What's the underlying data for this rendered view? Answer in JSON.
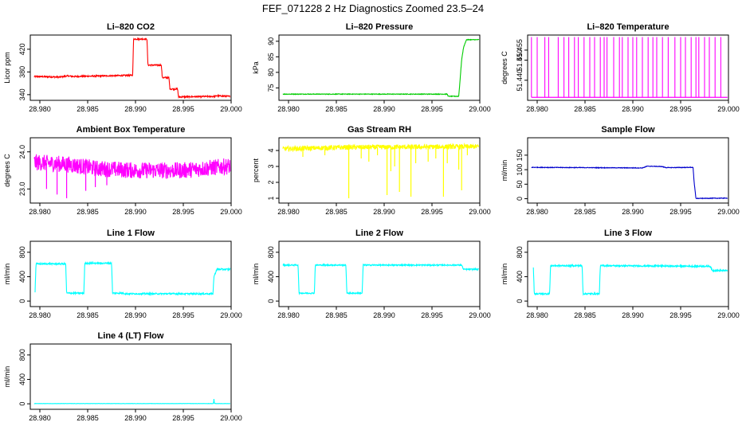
{
  "figure": {
    "title": "FEF_071228  2 Hz Diagnostics Zoomed 23.5–24"
  },
  "chart_data": [
    {
      "type": "line",
      "title": "Li–820 CO2",
      "ylabel": "Licor ppm",
      "color": "#ff0000",
      "xlim": [
        28.979,
        29.0
      ],
      "ylim": [
        330,
        445
      ],
      "x_ticks": [
        "28.980",
        "28.985",
        "28.990",
        "28.995",
        "29.000"
      ],
      "x_tick_values": [
        28.98,
        28.985,
        28.99,
        28.995,
        29.0
      ],
      "y_ticks": [
        "340",
        "380",
        "420"
      ],
      "y_tick_values": [
        340,
        380,
        420
      ],
      "noise": 1.2,
      "series": [
        {
          "x": [
            28.9794,
            28.982,
            28.9829,
            28.9835,
            28.9897,
            28.9898,
            28.9912,
            28.9913,
            28.9927,
            28.9928,
            28.9935,
            28.9936,
            28.9944,
            28.9945,
            28.9983,
            28.9985,
            28.9999
          ],
          "values": [
            372,
            371,
            373,
            372,
            374,
            438,
            438,
            392,
            392,
            370,
            370,
            350,
            350,
            336,
            337,
            338,
            337
          ]
        }
      ]
    },
    {
      "type": "line",
      "title": "Li–820 Pressure",
      "ylabel": "kPa",
      "color": "#00cc00",
      "xlim": [
        28.979,
        29.0
      ],
      "ylim": [
        71,
        92
      ],
      "x_ticks": [
        "28.980",
        "28.985",
        "28.990",
        "28.995",
        "29.000"
      ],
      "x_tick_values": [
        28.98,
        28.985,
        28.99,
        28.995,
        29.0
      ],
      "y_ticks": [
        "75",
        "80",
        "85",
        "90"
      ],
      "y_tick_values": [
        75,
        80,
        85,
        90
      ],
      "noise": 0.1,
      "series": [
        {
          "x": [
            28.9794,
            28.9966,
            28.9967,
            28.9978,
            28.9981,
            28.9983,
            28.9986,
            28.9999
          ],
          "values": [
            73.0,
            73.0,
            72.3,
            72.3,
            84,
            88,
            90.5,
            90.5
          ]
        }
      ]
    },
    {
      "type": "line",
      "title": "Li–820 Temperature",
      "ylabel": "degrees C",
      "color": "#ff00ff",
      "xlim": [
        28.979,
        29.0
      ],
      "ylim": [
        51.43,
        51.4625
      ],
      "x_ticks": [
        "28.980",
        "28.985",
        "28.990",
        "28.995",
        "29.000"
      ],
      "x_tick_values": [
        28.98,
        28.985,
        28.99,
        28.995,
        29.0
      ],
      "y_ticks": [
        "51.440",
        "51.450",
        "51.455"
      ],
      "y_tick_values": [
        51.44,
        51.45,
        51.455
      ],
      "low": 51.4315,
      "high": 51.4615,
      "spike_x": [
        28.9794,
        28.98,
        28.9808,
        28.9812,
        28.9822,
        28.9828,
        28.9833,
        28.9839,
        28.9843,
        28.9849,
        28.9855,
        28.986,
        28.9866,
        28.987,
        28.9873,
        28.988,
        28.9886,
        28.9889,
        28.9895,
        28.99,
        28.9904,
        28.991,
        28.9916,
        28.9921,
        28.9925,
        28.9931,
        28.9937,
        28.9944,
        28.995,
        28.9955,
        28.9961,
        28.9966,
        28.9969,
        28.9975,
        28.998,
        28.9986,
        28.9992
      ],
      "series": [
        {
          "x": [
            28.9794,
            28.9999
          ],
          "values": [
            51.4315,
            51.4315
          ]
        }
      ]
    },
    {
      "type": "line",
      "title": "Ambient Box Temperature",
      "ylabel": "degrees C",
      "color": "#ff00ff",
      "xlim": [
        28.979,
        29.0
      ],
      "ylim": [
        22.62,
        24.38
      ],
      "x_ticks": [
        "28.980",
        "28.985",
        "28.990",
        "28.995",
        "29.000"
      ],
      "x_tick_values": [
        28.98,
        28.985,
        28.99,
        28.995,
        29.0
      ],
      "y_ticks": [
        "23.0",
        "24.0"
      ],
      "y_tick_values": [
        23.0,
        24.0
      ],
      "noise": 0.22,
      "dips": [
        [
          28.9807,
          23.0
        ],
        [
          28.9818,
          22.85
        ],
        [
          28.9828,
          22.75
        ],
        [
          28.9848,
          22.95
        ],
        [
          28.9858,
          23.05
        ],
        [
          28.987,
          23.1
        ]
      ],
      "series": [
        {
          "x": [
            28.9794,
            28.983,
            28.986,
            28.99,
            28.995,
            28.9999
          ],
          "values": [
            23.72,
            23.66,
            23.55,
            23.5,
            23.5,
            23.62
          ]
        }
      ]
    },
    {
      "type": "line",
      "title": "Gas Stream RH",
      "ylabel": "percent",
      "color": "#ffff00",
      "xlim": [
        28.979,
        29.0
      ],
      "ylim": [
        0.7,
        4.8
      ],
      "x_ticks": [
        "28.980",
        "28.985",
        "28.990",
        "28.995",
        "29.000"
      ],
      "x_tick_values": [
        28.98,
        28.985,
        28.99,
        28.995,
        29.0
      ],
      "y_ticks": [
        "1",
        "2",
        "3",
        "4"
      ],
      "y_tick_values": [
        1,
        2,
        3,
        4
      ],
      "noise": 0.15,
      "dips": [
        [
          28.9815,
          3.6
        ],
        [
          28.9838,
          3.7
        ],
        [
          28.9863,
          1.0
        ],
        [
          28.9876,
          3.5
        ],
        [
          28.9884,
          3.3
        ],
        [
          28.9893,
          3.7
        ],
        [
          28.9903,
          1.2
        ],
        [
          28.9907,
          2.7
        ],
        [
          28.9911,
          3.0
        ],
        [
          28.9916,
          1.4
        ],
        [
          28.9928,
          1.1
        ],
        [
          28.9933,
          3.2
        ],
        [
          28.9946,
          3.3
        ],
        [
          28.9954,
          3.5
        ],
        [
          28.9962,
          1.1
        ],
        [
          28.9966,
          3.2
        ],
        [
          28.9978,
          2.8
        ],
        [
          28.9981,
          1.5
        ],
        [
          28.9987,
          3.7
        ]
      ],
      "series": [
        {
          "x": [
            28.9794,
            28.986,
            28.993,
            28.9999
          ],
          "values": [
            4.1,
            4.2,
            4.22,
            4.25
          ]
        }
      ]
    },
    {
      "type": "line",
      "title": "Sample Flow",
      "ylabel": "ml/min",
      "color": "#0000cc",
      "xlim": [
        28.979,
        29.0
      ],
      "ylim": [
        -15,
        210
      ],
      "x_ticks": [
        "28.980",
        "28.985",
        "28.990",
        "28.995",
        "29.000"
      ],
      "x_tick_values": [
        28.98,
        28.985,
        28.99,
        28.995,
        29.0
      ],
      "y_ticks": [
        "0",
        "50",
        "100",
        "150"
      ],
      "y_tick_values": [
        0,
        50,
        100,
        150
      ],
      "noise": 1.0,
      "series": [
        {
          "x": [
            28.9794,
            28.991,
            28.9915,
            28.993,
            28.9935,
            28.9963,
            28.9964,
            28.9966,
            28.9999
          ],
          "values": [
            108,
            106,
            112,
            111,
            107,
            108,
            60,
            1,
            2
          ]
        }
      ]
    },
    {
      "type": "line",
      "title": "Line 1 Flow",
      "ylabel": "ml/min",
      "color": "#00ffff",
      "xlim": [
        28.979,
        29.0
      ],
      "ylim": [
        -90,
        980
      ],
      "x_ticks": [
        "28.980",
        "28.985",
        "28.990",
        "28.995",
        "29.000"
      ],
      "x_tick_values": [
        28.98,
        28.985,
        28.99,
        28.995,
        29.0
      ],
      "y_ticks": [
        "0",
        "400",
        "800"
      ],
      "y_tick_values": [
        0,
        400,
        800
      ],
      "noise": 12,
      "series": [
        {
          "x": [
            28.9795,
            28.9796,
            28.9827,
            28.9828,
            28.9846,
            28.9847,
            28.9875,
            28.9876,
            28.9888,
            28.9889,
            28.9981,
            28.9982,
            28.9985,
            28.9999
          ],
          "values": [
            150,
            610,
            610,
            130,
            130,
            620,
            620,
            130,
            130,
            120,
            120,
            400,
            520,
            520
          ]
        }
      ]
    },
    {
      "type": "line",
      "title": "Line 2 Flow",
      "ylabel": "ml/min",
      "color": "#00ffff",
      "xlim": [
        28.979,
        29.0
      ],
      "ylim": [
        -90,
        980
      ],
      "x_ticks": [
        "28.980",
        "28.985",
        "28.990",
        "28.995",
        "29.000"
      ],
      "x_tick_values": [
        28.98,
        28.985,
        28.99,
        28.995,
        29.0
      ],
      "y_ticks": [
        "0",
        "400",
        "800"
      ],
      "y_tick_values": [
        0,
        400,
        800
      ],
      "noise": 10,
      "series": [
        {
          "x": [
            28.9794,
            28.981,
            28.9811,
            28.9827,
            28.9828,
            28.986,
            28.9861,
            28.9877,
            28.9878,
            28.9981,
            28.9983,
            28.9999
          ],
          "values": [
            590,
            590,
            130,
            130,
            590,
            590,
            130,
            130,
            590,
            590,
            520,
            520
          ]
        }
      ]
    },
    {
      "type": "line",
      "title": "Line 3 Flow",
      "ylabel": "ml/min",
      "color": "#00ffff",
      "xlim": [
        28.979,
        29.0
      ],
      "ylim": [
        -90,
        980
      ],
      "x_ticks": [
        "28.980",
        "28.985",
        "28.990",
        "28.995",
        "29.000"
      ],
      "x_tick_values": [
        28.98,
        28.985,
        28.99,
        28.995,
        29.0
      ],
      "y_ticks": [
        "0",
        "400",
        "800"
      ],
      "y_tick_values": [
        0,
        400,
        800
      ],
      "noise": 12,
      "series": [
        {
          "x": [
            28.9796,
            28.9797,
            28.9813,
            28.9814,
            28.9847,
            28.9848,
            28.9865,
            28.9866,
            28.9981,
            28.9983,
            28.9999
          ],
          "values": [
            550,
            120,
            120,
            580,
            580,
            120,
            120,
            580,
            570,
            500,
            500
          ]
        }
      ]
    },
    {
      "type": "line",
      "title": "Line 4 (LT) Flow",
      "ylabel": "ml/min",
      "color": "#00ffff",
      "xlim": [
        28.979,
        29.0
      ],
      "ylim": [
        -90,
        980
      ],
      "x_ticks": [
        "28.980",
        "28.985",
        "28.990",
        "28.995",
        "29.000"
      ],
      "x_tick_values": [
        28.98,
        28.985,
        28.99,
        28.995,
        29.0
      ],
      "y_ticks": [
        "0",
        "400",
        "800"
      ],
      "y_tick_values": [
        0,
        400,
        800
      ],
      "noise": 2,
      "series": [
        {
          "x": [
            28.9794,
            28.99815,
            28.9982,
            28.99825,
            28.9983,
            28.9999
          ],
          "values": [
            4,
            4,
            80,
            10,
            4,
            4
          ]
        }
      ]
    }
  ]
}
